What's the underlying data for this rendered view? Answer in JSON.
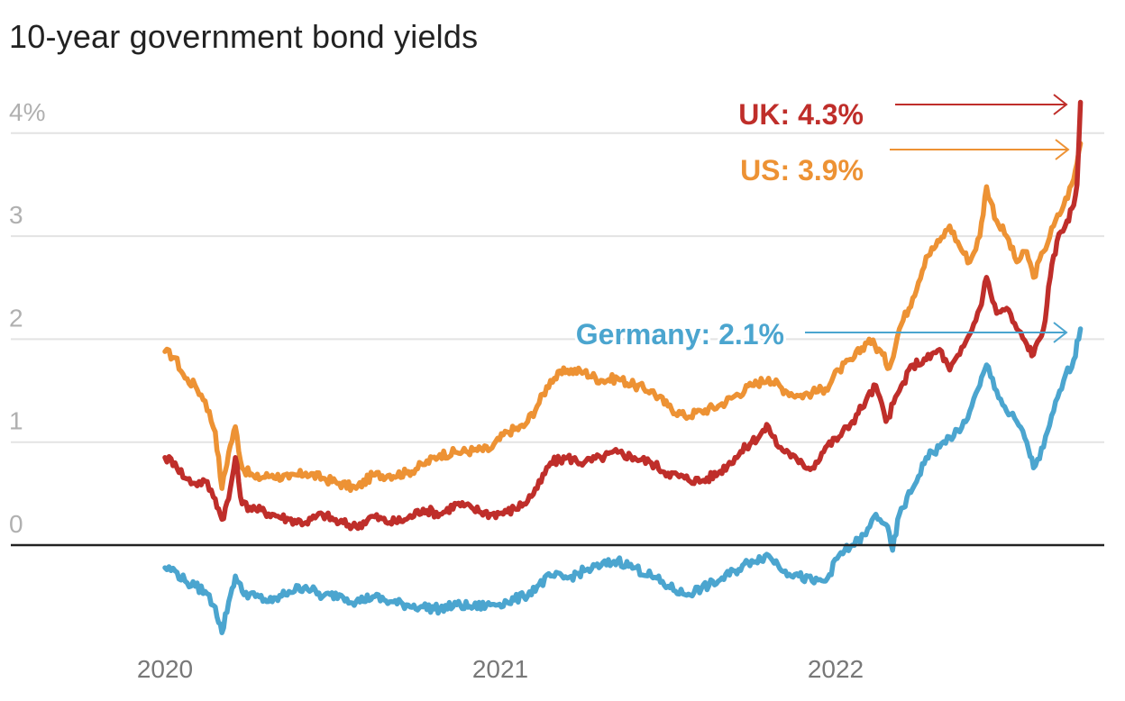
{
  "chart_data": {
    "type": "line",
    "title": "10-year government bond yields",
    "xlabel": "",
    "ylabel": "",
    "ylim": [
      -0.9,
      4.3
    ],
    "xlim": [
      2019.95,
      2022.75
    ],
    "grid": true,
    "legend": "none (inline annotations at right)",
    "y_ticks": [
      {
        "value": 4,
        "label": "4%"
      },
      {
        "value": 3,
        "label": "3"
      },
      {
        "value": 2,
        "label": "2"
      },
      {
        "value": 1,
        "label": "1"
      },
      {
        "value": 0,
        "label": "0"
      }
    ],
    "x_ticks": [
      {
        "value": 2020,
        "label": "2020"
      },
      {
        "value": 2021,
        "label": "2021"
      },
      {
        "value": 2022,
        "label": "2022"
      }
    ],
    "series": [
      {
        "name": "US",
        "color": "#ED9234",
        "annotation": "US: 3.9%",
        "final_value": 3.9,
        "points": [
          [
            2020.0,
            1.88
          ],
          [
            2020.03,
            1.82
          ],
          [
            2020.06,
            1.62
          ],
          [
            2020.09,
            1.55
          ],
          [
            2020.12,
            1.4
          ],
          [
            2020.15,
            1.1
          ],
          [
            2020.17,
            0.55
          ],
          [
            2020.19,
            0.9
          ],
          [
            2020.21,
            1.15
          ],
          [
            2020.23,
            0.75
          ],
          [
            2020.27,
            0.65
          ],
          [
            2020.32,
            0.68
          ],
          [
            2020.37,
            0.65
          ],
          [
            2020.42,
            0.7
          ],
          [
            2020.47,
            0.65
          ],
          [
            2020.52,
            0.6
          ],
          [
            2020.57,
            0.55
          ],
          [
            2020.62,
            0.68
          ],
          [
            2020.67,
            0.68
          ],
          [
            2020.72,
            0.7
          ],
          [
            2020.77,
            0.78
          ],
          [
            2020.82,
            0.88
          ],
          [
            2020.87,
            0.9
          ],
          [
            2020.92,
            0.92
          ],
          [
            2020.97,
            0.93
          ],
          [
            2021.02,
            1.1
          ],
          [
            2021.07,
            1.15
          ],
          [
            2021.11,
            1.35
          ],
          [
            2021.15,
            1.6
          ],
          [
            2021.2,
            1.7
          ],
          [
            2021.25,
            1.68
          ],
          [
            2021.3,
            1.6
          ],
          [
            2021.35,
            1.62
          ],
          [
            2021.4,
            1.55
          ],
          [
            2021.45,
            1.5
          ],
          [
            2021.5,
            1.35
          ],
          [
            2021.55,
            1.25
          ],
          [
            2021.6,
            1.3
          ],
          [
            2021.65,
            1.35
          ],
          [
            2021.7,
            1.45
          ],
          [
            2021.75,
            1.55
          ],
          [
            2021.8,
            1.62
          ],
          [
            2021.85,
            1.5
          ],
          [
            2021.89,
            1.45
          ],
          [
            2021.93,
            1.48
          ],
          [
            2021.97,
            1.52
          ],
          [
            2022.01,
            1.7
          ],
          [
            2022.05,
            1.8
          ],
          [
            2022.1,
            2.0
          ],
          [
            2022.14,
            1.85
          ],
          [
            2022.16,
            1.72
          ],
          [
            2022.19,
            2.1
          ],
          [
            2022.23,
            2.4
          ],
          [
            2022.27,
            2.8
          ],
          [
            2022.31,
            2.95
          ],
          [
            2022.34,
            3.1
          ],
          [
            2022.37,
            2.9
          ],
          [
            2022.4,
            2.75
          ],
          [
            2022.43,
            3.0
          ],
          [
            2022.45,
            3.48
          ],
          [
            2022.48,
            3.15
          ],
          [
            2022.51,
            3.0
          ],
          [
            2022.54,
            2.75
          ],
          [
            2022.57,
            2.85
          ],
          [
            2022.59,
            2.6
          ],
          [
            2022.62,
            2.85
          ],
          [
            2022.65,
            3.1
          ],
          [
            2022.68,
            3.3
          ],
          [
            2022.71,
            3.55
          ],
          [
            2022.73,
            3.9
          ]
        ]
      },
      {
        "name": "UK",
        "color": "#BF2E2A",
        "annotation": "UK: 4.3%",
        "final_value": 4.3,
        "points": [
          [
            2020.0,
            0.85
          ],
          [
            2020.03,
            0.8
          ],
          [
            2020.06,
            0.65
          ],
          [
            2020.09,
            0.6
          ],
          [
            2020.12,
            0.62
          ],
          [
            2020.15,
            0.45
          ],
          [
            2020.17,
            0.25
          ],
          [
            2020.19,
            0.45
          ],
          [
            2020.21,
            0.85
          ],
          [
            2020.23,
            0.4
          ],
          [
            2020.27,
            0.35
          ],
          [
            2020.32,
            0.3
          ],
          [
            2020.37,
            0.25
          ],
          [
            2020.42,
            0.22
          ],
          [
            2020.47,
            0.3
          ],
          [
            2020.52,
            0.22
          ],
          [
            2020.57,
            0.18
          ],
          [
            2020.62,
            0.28
          ],
          [
            2020.67,
            0.22
          ],
          [
            2020.72,
            0.25
          ],
          [
            2020.77,
            0.35
          ],
          [
            2020.82,
            0.3
          ],
          [
            2020.87,
            0.4
          ],
          [
            2020.92,
            0.35
          ],
          [
            2020.97,
            0.3
          ],
          [
            2021.02,
            0.32
          ],
          [
            2021.07,
            0.4
          ],
          [
            2021.11,
            0.55
          ],
          [
            2021.15,
            0.8
          ],
          [
            2021.2,
            0.85
          ],
          [
            2021.25,
            0.8
          ],
          [
            2021.3,
            0.85
          ],
          [
            2021.35,
            0.9
          ],
          [
            2021.4,
            0.85
          ],
          [
            2021.45,
            0.8
          ],
          [
            2021.5,
            0.7
          ],
          [
            2021.55,
            0.65
          ],
          [
            2021.6,
            0.62
          ],
          [
            2021.65,
            0.7
          ],
          [
            2021.7,
            0.85
          ],
          [
            2021.75,
            1.0
          ],
          [
            2021.8,
            1.15
          ],
          [
            2021.83,
            0.95
          ],
          [
            2021.86,
            0.9
          ],
          [
            2021.89,
            0.8
          ],
          [
            2021.93,
            0.75
          ],
          [
            2021.97,
            0.95
          ],
          [
            2022.01,
            1.05
          ],
          [
            2022.05,
            1.2
          ],
          [
            2022.09,
            1.4
          ],
          [
            2022.12,
            1.55
          ],
          [
            2022.15,
            1.2
          ],
          [
            2022.19,
            1.5
          ],
          [
            2022.23,
            1.75
          ],
          [
            2022.27,
            1.8
          ],
          [
            2022.31,
            1.9
          ],
          [
            2022.34,
            1.7
          ],
          [
            2022.37,
            1.85
          ],
          [
            2022.4,
            2.05
          ],
          [
            2022.43,
            2.3
          ],
          [
            2022.45,
            2.6
          ],
          [
            2022.48,
            2.25
          ],
          [
            2022.51,
            2.3
          ],
          [
            2022.54,
            2.1
          ],
          [
            2022.57,
            1.95
          ],
          [
            2022.59,
            1.85
          ],
          [
            2022.62,
            2.1
          ],
          [
            2022.64,
            2.6
          ],
          [
            2022.66,
            2.95
          ],
          [
            2022.69,
            3.15
          ],
          [
            2022.71,
            3.3
          ],
          [
            2022.72,
            3.5
          ],
          [
            2022.73,
            4.3
          ]
        ]
      },
      {
        "name": "Germany",
        "color": "#4BA5CF",
        "annotation": "Germany: 2.1%",
        "final_value": 2.1,
        "points": [
          [
            2020.0,
            -0.22
          ],
          [
            2020.03,
            -0.25
          ],
          [
            2020.06,
            -0.35
          ],
          [
            2020.09,
            -0.4
          ],
          [
            2020.12,
            -0.45
          ],
          [
            2020.15,
            -0.6
          ],
          [
            2020.17,
            -0.85
          ],
          [
            2020.19,
            -0.55
          ],
          [
            2020.21,
            -0.3
          ],
          [
            2020.23,
            -0.45
          ],
          [
            2020.27,
            -0.5
          ],
          [
            2020.32,
            -0.55
          ],
          [
            2020.37,
            -0.45
          ],
          [
            2020.42,
            -0.4
          ],
          [
            2020.47,
            -0.5
          ],
          [
            2020.52,
            -0.48
          ],
          [
            2020.57,
            -0.55
          ],
          [
            2020.62,
            -0.5
          ],
          [
            2020.67,
            -0.55
          ],
          [
            2020.72,
            -0.58
          ],
          [
            2020.77,
            -0.6
          ],
          [
            2020.82,
            -0.62
          ],
          [
            2020.87,
            -0.58
          ],
          [
            2020.92,
            -0.6
          ],
          [
            2020.97,
            -0.58
          ],
          [
            2021.02,
            -0.55
          ],
          [
            2021.07,
            -0.5
          ],
          [
            2021.11,
            -0.4
          ],
          [
            2021.15,
            -0.3
          ],
          [
            2021.2,
            -0.32
          ],
          [
            2021.25,
            -0.25
          ],
          [
            2021.3,
            -0.2
          ],
          [
            2021.35,
            -0.15
          ],
          [
            2021.4,
            -0.22
          ],
          [
            2021.45,
            -0.3
          ],
          [
            2021.5,
            -0.4
          ],
          [
            2021.55,
            -0.48
          ],
          [
            2021.6,
            -0.42
          ],
          [
            2021.65,
            -0.35
          ],
          [
            2021.7,
            -0.25
          ],
          [
            2021.75,
            -0.15
          ],
          [
            2021.8,
            -0.1
          ],
          [
            2021.85,
            -0.25
          ],
          [
            2021.89,
            -0.3
          ],
          [
            2021.93,
            -0.35
          ],
          [
            2021.97,
            -0.35
          ],
          [
            2022.01,
            -0.1
          ],
          [
            2022.05,
            0.0
          ],
          [
            2022.09,
            0.1
          ],
          [
            2022.12,
            0.3
          ],
          [
            2022.15,
            0.2
          ],
          [
            2022.17,
            -0.05
          ],
          [
            2022.19,
            0.3
          ],
          [
            2022.23,
            0.55
          ],
          [
            2022.27,
            0.85
          ],
          [
            2022.31,
            0.95
          ],
          [
            2022.34,
            1.05
          ],
          [
            2022.37,
            1.1
          ],
          [
            2022.4,
            1.3
          ],
          [
            2022.43,
            1.55
          ],
          [
            2022.45,
            1.75
          ],
          [
            2022.48,
            1.5
          ],
          [
            2022.51,
            1.3
          ],
          [
            2022.54,
            1.2
          ],
          [
            2022.57,
            1.0
          ],
          [
            2022.59,
            0.75
          ],
          [
            2022.62,
            0.95
          ],
          [
            2022.65,
            1.3
          ],
          [
            2022.68,
            1.6
          ],
          [
            2022.71,
            1.8
          ],
          [
            2022.73,
            2.1
          ]
        ]
      }
    ],
    "annotations": [
      {
        "series": "UK",
        "text": "UK: 4.3%",
        "color": "#BF2E2A",
        "arrow": true
      },
      {
        "series": "US",
        "text": "US: 3.9%",
        "color": "#ED9234",
        "arrow": true
      },
      {
        "series": "Germany",
        "text": "Germany: 2.1%",
        "color": "#4BA5CF",
        "arrow": true
      }
    ],
    "colors": {
      "gridline": "#e3e3e3",
      "zero_line": "#222222",
      "ytick": "#b0b0b0",
      "xtick": "#777777",
      "title": "#222222"
    }
  }
}
